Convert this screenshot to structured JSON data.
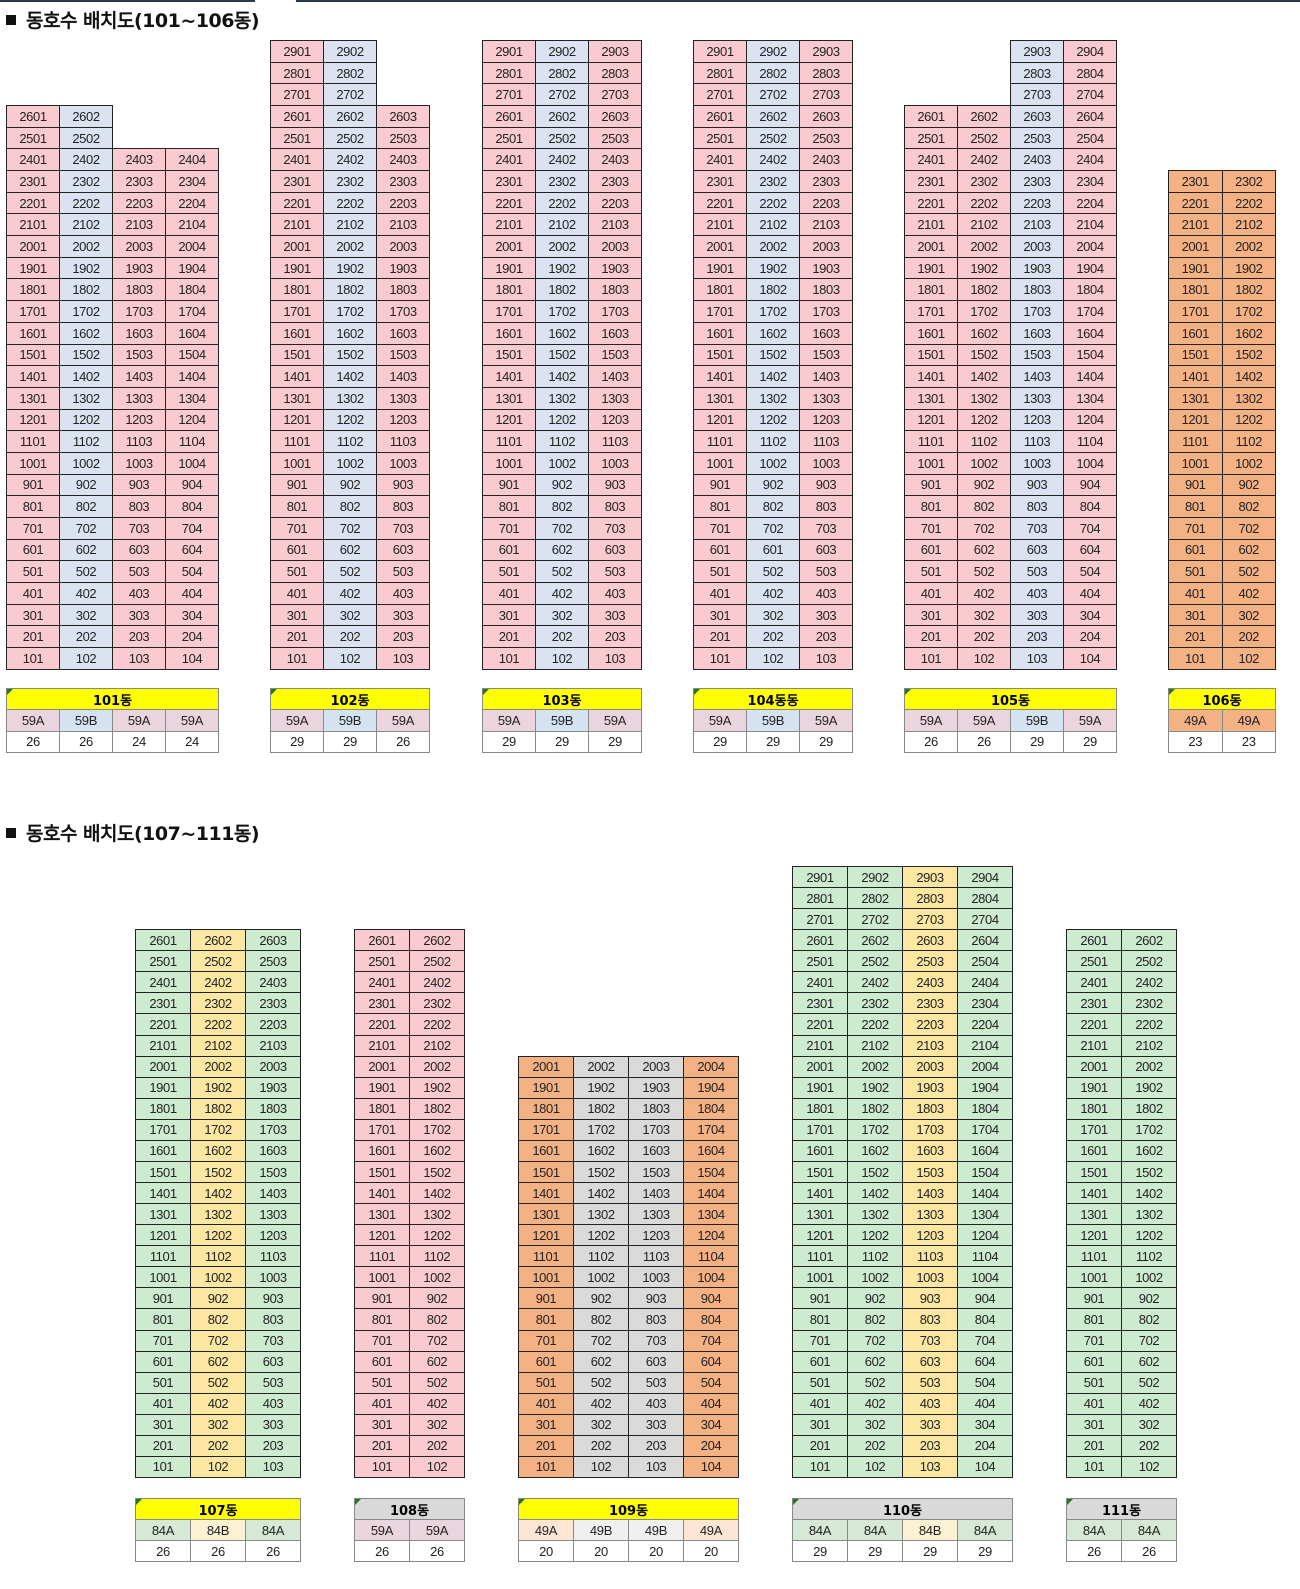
{
  "sections": [
    {
      "heading": "동호수 배치도(101~106동)"
    },
    {
      "heading": "동호수 배치도(107~111동)"
    }
  ],
  "colors": {
    "pink": "#f9cbd1",
    "blue": "#dbe3f1",
    "orange": "#f4b183",
    "green": "#cdebcf",
    "yellow": "#fbe7a1",
    "grey": "#dadada",
    "legend_pink": "#ead5de",
    "legend_blue": "#d5e2f0",
    "legend_orange": "#f4b183",
    "legend_peach": "#fde6d6",
    "legend_lightgrey": "#f0f0f0",
    "legend_green": "#d6e8d6",
    "legend_cream": "#fdf1d3",
    "label_yellow": "#ffff00",
    "label_grey": "#d9d9d9"
  },
  "buildings": [
    {
      "label": "101동",
      "label_bg": "#ffff00",
      "section": 0,
      "columns": [
        {
          "suffix": "01",
          "top_floor": 26,
          "color": "#f9cbd1",
          "type": "59A",
          "type_color": "#ead5de",
          "count": "26"
        },
        {
          "suffix": "02",
          "top_floor": 26,
          "color": "#dbe3f1",
          "type": "59B",
          "type_color": "#d5e2f0",
          "count": "26"
        },
        {
          "suffix": "03",
          "top_floor": 24,
          "color": "#f9cbd1",
          "type": "59A",
          "type_color": "#ead5de",
          "count": "24"
        },
        {
          "suffix": "04",
          "top_floor": 24,
          "color": "#f9cbd1",
          "type": "59A",
          "type_color": "#ead5de",
          "count": "24"
        }
      ]
    },
    {
      "label": "102동",
      "label_bg": "#ffff00",
      "section": 0,
      "columns": [
        {
          "suffix": "01",
          "top_floor": 29,
          "color": "#f9cbd1",
          "type": "59A",
          "type_color": "#ead5de",
          "count": "29"
        },
        {
          "suffix": "02",
          "top_floor": 29,
          "color": "#dbe3f1",
          "type": "59B",
          "type_color": "#d5e2f0",
          "count": "29"
        },
        {
          "suffix": "03",
          "top_floor": 26,
          "color": "#f9cbd1",
          "type": "59A",
          "type_color": "#ead5de",
          "count": "26"
        }
      ]
    },
    {
      "label": "103동",
      "label_bg": "#ffff00",
      "section": 0,
      "columns": [
        {
          "suffix": "01",
          "top_floor": 29,
          "color": "#f9cbd1",
          "type": "59A",
          "type_color": "#ead5de",
          "count": "29"
        },
        {
          "suffix": "02",
          "top_floor": 29,
          "color": "#dbe3f1",
          "type": "59B",
          "type_color": "#d5e2f0",
          "count": "29"
        },
        {
          "suffix": "03",
          "top_floor": 29,
          "color": "#f9cbd1",
          "type": "59A",
          "type_color": "#ead5de",
          "count": "29"
        }
      ]
    },
    {
      "label": "104동동",
      "label_bg": "#ffff00",
      "section": 0,
      "columns": [
        {
          "suffix": "01",
          "top_floor": 29,
          "color": "#f9cbd1",
          "type": "59A",
          "type_color": "#ead5de",
          "count": "29"
        },
        {
          "suffix": "02",
          "top_floor": 29,
          "color": "#dbe3f1",
          "type": "59B",
          "type_color": "#d5e2f0",
          "count": "29"
        },
        {
          "suffix": "03",
          "top_floor": 29,
          "color": "#f9cbd1",
          "type": "59A",
          "type_color": "#ead5de",
          "count": "29"
        }
      ],
      "overrides": [
        {
          "floor": 6,
          "col": 1,
          "text": "601"
        }
      ]
    },
    {
      "label": "105동",
      "label_bg": "#ffff00",
      "section": 0,
      "columns": [
        {
          "suffix": "01",
          "top_floor": 26,
          "color": "#f9cbd1",
          "type": "59A",
          "type_color": "#ead5de",
          "count": "26"
        },
        {
          "suffix": "02",
          "top_floor": 26,
          "color": "#f9cbd1",
          "type": "59A",
          "type_color": "#ead5de",
          "count": "26"
        },
        {
          "suffix": "03",
          "top_floor": 29,
          "color": "#dbe3f1",
          "type": "59B",
          "type_color": "#d5e2f0",
          "count": "29"
        },
        {
          "suffix": "04",
          "top_floor": 29,
          "color": "#f9cbd1",
          "type": "59A",
          "type_color": "#ead5de",
          "count": "29"
        }
      ]
    },
    {
      "label": "106동",
      "label_bg": "#ffff00",
      "section": 0,
      "columns": [
        {
          "suffix": "01",
          "top_floor": 23,
          "color": "#f4b183",
          "type": "49A",
          "type_color": "#f4b183",
          "count": "23"
        },
        {
          "suffix": "02",
          "top_floor": 23,
          "color": "#f4b183",
          "type": "49A",
          "type_color": "#f4b183",
          "count": "23"
        }
      ]
    },
    {
      "label": "107동",
      "label_bg": "#ffff00",
      "section": 1,
      "columns": [
        {
          "suffix": "01",
          "top_floor": 26,
          "color": "#cdebcf",
          "type": "84A",
          "type_color": "#d6e8d6",
          "count": "26"
        },
        {
          "suffix": "02",
          "top_floor": 26,
          "color": "#fbe7a1",
          "type": "84B",
          "type_color": "#fdf1d3",
          "count": "26"
        },
        {
          "suffix": "03",
          "top_floor": 26,
          "color": "#cdebcf",
          "type": "84A",
          "type_color": "#d6e8d6",
          "count": "26"
        }
      ]
    },
    {
      "label": "108동",
      "label_bg": "#d9d9d9",
      "section": 1,
      "columns": [
        {
          "suffix": "01",
          "top_floor": 26,
          "color": "#f9cbd1",
          "type": "59A",
          "type_color": "#ead5de",
          "count": "26"
        },
        {
          "suffix": "02",
          "top_floor": 26,
          "color": "#f9cbd1",
          "type": "59A",
          "type_color": "#ead5de",
          "count": "26"
        }
      ]
    },
    {
      "label": "109동",
      "label_bg": "#ffff00",
      "section": 1,
      "columns": [
        {
          "suffix": "01",
          "top_floor": 20,
          "color": "#f4b183",
          "type": "49A",
          "type_color": "#fde6d6",
          "count": "20"
        },
        {
          "suffix": "02",
          "top_floor": 20,
          "color": "#dadada",
          "type": "49B",
          "type_color": "#f0f0f0",
          "count": "20"
        },
        {
          "suffix": "03",
          "top_floor": 20,
          "color": "#dadada",
          "type": "49B",
          "type_color": "#f0f0f0",
          "count": "20"
        },
        {
          "suffix": "04",
          "top_floor": 20,
          "color": "#f4b183",
          "type": "49A",
          "type_color": "#fde6d6",
          "count": "20"
        }
      ]
    },
    {
      "label": "110동",
      "label_bg": "#d9d9d9",
      "section": 1,
      "columns": [
        {
          "suffix": "01",
          "top_floor": 29,
          "color": "#cdebcf",
          "type": "84A",
          "type_color": "#d6e8d6",
          "count": "29"
        },
        {
          "suffix": "02",
          "top_floor": 29,
          "color": "#cdebcf",
          "type": "84A",
          "type_color": "#d6e8d6",
          "count": "29"
        },
        {
          "suffix": "03",
          "top_floor": 29,
          "color": "#fbe7a1",
          "type": "84B",
          "type_color": "#fdf1d3",
          "count": "29"
        },
        {
          "suffix": "04",
          "top_floor": 29,
          "color": "#cdebcf",
          "type": "84A",
          "type_color": "#d6e8d6",
          "count": "29"
        }
      ]
    },
    {
      "label": "111동",
      "label_bg": "#d9d9d9",
      "section": 1,
      "columns": [
        {
          "suffix": "01",
          "top_floor": 26,
          "color": "#cdebcf",
          "type": "84A",
          "type_color": "#d6e8d6",
          "count": "26"
        },
        {
          "suffix": "02",
          "top_floor": 26,
          "color": "#cdebcf",
          "type": "84A",
          "type_color": "#d6e8d6",
          "count": "26"
        }
      ]
    }
  ]
}
